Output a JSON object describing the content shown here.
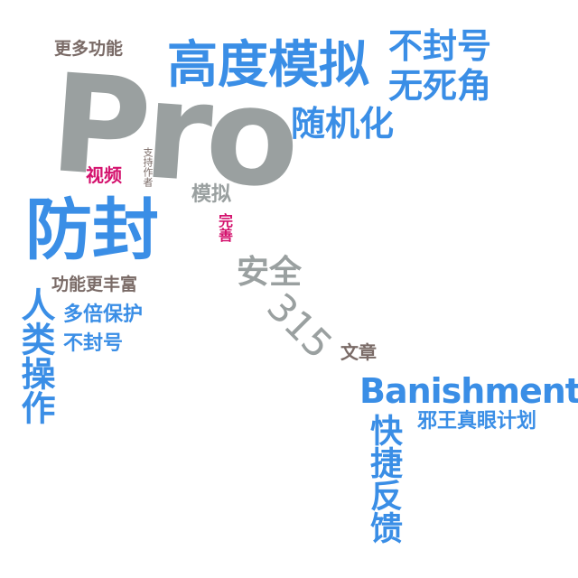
{
  "colors": {
    "blue": "#3a8ee6",
    "gray": "#9aa0a0",
    "brown": "#7a6b67",
    "pink": "#d4116d",
    "background": "#ffffff"
  },
  "words": {
    "pro": "Pro",
    "gaodu_moni": "高度模拟",
    "bu_feng_hao_top": "不封号",
    "wu_si_jiao": "无死角",
    "sui_ji_hua": "随机化",
    "geng_duo_gongneng": "更多功能",
    "shipin": "视频",
    "zhichi_zuozhe": "支持作者",
    "moni": "模拟",
    "fangfeng": "防封",
    "wanshan": "完善",
    "anquan": "安全",
    "three_fifteen": "315",
    "wenzhang": "文章",
    "gongneng_geng_fengfu": "功能更丰富",
    "rulei_caozuo": "人类操作",
    "beibei_baohu": "多倍保护",
    "bu_feng_hao_left": "不封号",
    "banishment": "Banishment",
    "xieewang": "邪王真眼计划",
    "kuaijie_fankui": "快捷反馈"
  }
}
